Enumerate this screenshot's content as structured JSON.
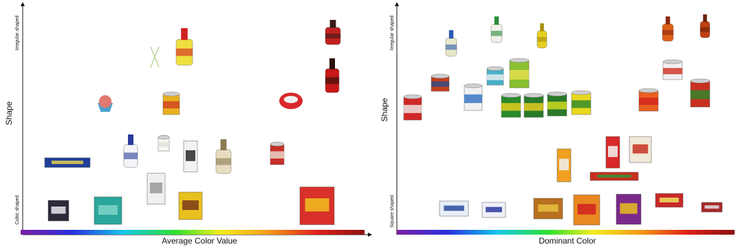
{
  "panels": [
    {
      "y_label": "Shape",
      "y_top": "Irregular shaped",
      "y_bottom": "Cubic shaped",
      "x_label": "Average Color Value"
    },
    {
      "y_label": "Shape",
      "y_top": "Irregular shaped",
      "y_bottom": "Square shaped",
      "x_label": "Dominant Color"
    }
  ]
}
